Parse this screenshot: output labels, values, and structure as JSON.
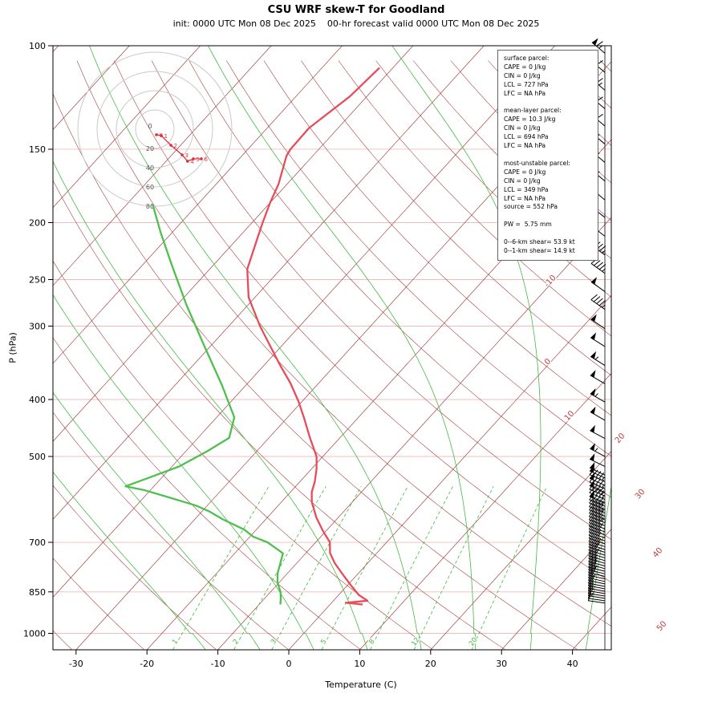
{
  "title": "CSU WRF skew-T for Goodland",
  "subtitle": "init: 0000 UTC Mon 08 Dec 2025    00-hr forecast valid 0000 UTC Mon 08 Dec 2025",
  "axes": {
    "x_label": "Temperature (C)",
    "y_label": "P (hPa)",
    "pressure_ticks": [
      100,
      150,
      200,
      250,
      300,
      400,
      500,
      700,
      850,
      1000
    ],
    "temp_ticks": [
      -30,
      -20,
      -10,
      0,
      10,
      20,
      30,
      40
    ]
  },
  "info_box": {
    "lines": [
      "surface parcel:",
      "CAPE = 0 J/kg",
      "CIN = 0 J/kg",
      "LCL = 727 hPa",
      "LFC = NA hPa",
      "",
      "mean-layer parcel:",
      "CAPE = 10.3 J/kg",
      "CIN = 0 J/kg",
      "LCL = 694 hPa",
      "LFC = NA hPa",
      "",
      "most-unstable parcel:",
      "CAPE = 0 J/kg",
      "CIN = 0 J/kg",
      "LCL = 349 hPa",
      "LFC = NA hPa",
      "source = 552 hPa",
      "",
      "PW =  5.75 mm",
      "",
      "0--6-km shear= 53.9 kt",
      "0--1-km shear= 14.9 kt"
    ]
  },
  "colors": {
    "temperature": "#e84b5a",
    "dewpoint": "#4fbf4f",
    "grid_warm": "#a23333",
    "grid_moist": "#44bb44",
    "grid_mixing": "#3dbb3d",
    "pressure_line": "#f2bcbc",
    "hodograph_trace": "#e03040",
    "isotherm_label": "#c43c3c",
    "barb": "#000000"
  },
  "chart_data": {
    "type": "line",
    "subtype": "skew-t-log-p",
    "temperature_profile": [
      [
        893,
        4.6
      ],
      [
        887,
        2.0
      ],
      [
        880,
        4.8
      ],
      [
        860,
        2.8
      ],
      [
        830,
        0.6
      ],
      [
        800,
        -1.6
      ],
      [
        760,
        -4.6
      ],
      [
        730,
        -6.6
      ],
      [
        700,
        -8.0
      ],
      [
        670,
        -10.4
      ],
      [
        635,
        -13.1
      ],
      [
        598,
        -15.7
      ],
      [
        575,
        -17.0
      ],
      [
        552,
        -17.9
      ],
      [
        525,
        -19.3
      ],
      [
        500,
        -20.9
      ],
      [
        465,
        -24.2
      ],
      [
        430,
        -27.6
      ],
      [
        403,
        -30.5
      ],
      [
        375,
        -34.0
      ],
      [
        350,
        -37.7
      ],
      [
        325,
        -41.5
      ],
      [
        300,
        -45.6
      ],
      [
        268,
        -50.9
      ],
      [
        240,
        -54.7
      ],
      [
        211,
        -57.4
      ],
      [
        200,
        -58.5
      ],
      [
        185,
        -60.0
      ],
      [
        172,
        -61.2
      ],
      [
        154,
        -63.7
      ],
      [
        150,
        -64.0
      ],
      [
        138,
        -64.1
      ],
      [
        122,
        -62.4
      ],
      [
        109,
        -61.9
      ]
    ],
    "dewpoint_profile": [
      [
        893,
        -7.0
      ],
      [
        870,
        -7.8
      ],
      [
        850,
        -8.6
      ],
      [
        820,
        -10.2
      ],
      [
        790,
        -11.4
      ],
      [
        760,
        -12.3
      ],
      [
        731,
        -13.2
      ],
      [
        715,
        -15.0
      ],
      [
        700,
        -16.8
      ],
      [
        685,
        -19.5
      ],
      [
        666,
        -21.7
      ],
      [
        640,
        -26.0
      ],
      [
        620,
        -29.0
      ],
      [
        606,
        -31.6
      ],
      [
        585,
        -37.0
      ],
      [
        570,
        -41.0
      ],
      [
        562,
        -44.0
      ],
      [
        545,
        -42.0
      ],
      [
        520,
        -39.0
      ],
      [
        490,
        -37.0
      ],
      [
        465,
        -35.6
      ],
      [
        429,
        -37.5
      ],
      [
        378,
        -43.4
      ],
      [
        323,
        -51.1
      ],
      [
        276,
        -58.7
      ],
      [
        236,
        -65.9
      ],
      [
        208,
        -71.6
      ],
      [
        186,
        -76.4
      ]
    ],
    "isotherm_labels": [
      -10,
      0,
      10,
      20,
      30,
      40,
      50
    ],
    "grid": {
      "mixing_ratio": [
        1,
        2,
        3,
        5,
        8,
        12,
        20
      ],
      "moist_adiabats": [
        -16,
        -8,
        0,
        8,
        16,
        24,
        32,
        40
      ],
      "dry_adiabats": {
        "from": -35,
        "to": 195,
        "step": 10
      }
    },
    "hodograph": {
      "rings_kt": [
        20,
        40,
        60,
        80
      ],
      "ring_labels": [
        "20",
        "40",
        "60",
        "80"
      ],
      "origin_label": "0",
      "trace": [
        {
          "km": "0",
          "u": 1.7,
          "v": -5.8
        },
        {
          "km": "1",
          "u": 6.7,
          "v": -6.7
        },
        {
          "km": "2",
          "u": 16.7,
          "v": -16.7
        },
        {
          "km": "3",
          "u": 28.3,
          "v": -26.7
        },
        {
          "km": "4",
          "u": 34.0,
          "v": -33.3
        },
        {
          "km": "5",
          "u": 40.0,
          "v": -30.8
        },
        {
          "km": "6",
          "u": 48.3,
          "v": -30.8
        }
      ]
    },
    "winds_p_speed_dir": [
      [
        103,
        65,
        310
      ],
      [
        111,
        60,
        310
      ],
      [
        119,
        65,
        310
      ],
      [
        128,
        60,
        310
      ],
      [
        137,
        60,
        310
      ],
      [
        147,
        55,
        310
      ],
      [
        158,
        55,
        310
      ],
      [
        170,
        55,
        310
      ],
      [
        183,
        50,
        310
      ],
      [
        196,
        50,
        308
      ],
      [
        211,
        50,
        308
      ],
      [
        227,
        45,
        306
      ],
      [
        244,
        45,
        306
      ],
      [
        262,
        50,
        305
      ],
      [
        281,
        45,
        305
      ],
      [
        303,
        50,
        304
      ],
      [
        325,
        50,
        302
      ],
      [
        350,
        55,
        302
      ],
      [
        376,
        50,
        300
      ],
      [
        404,
        55,
        300
      ],
      [
        434,
        50,
        300
      ],
      [
        466,
        50,
        298
      ],
      [
        500,
        55,
        298
      ],
      [
        520,
        50,
        296
      ],
      [
        538,
        50,
        296
      ],
      [
        544,
        50,
        295
      ],
      [
        552,
        45,
        295
      ],
      [
        560,
        50,
        295
      ],
      [
        568,
        45,
        295
      ],
      [
        576,
        50,
        294
      ],
      [
        584,
        45,
        294
      ],
      [
        592,
        45,
        294
      ],
      [
        600,
        50,
        293
      ],
      [
        608,
        45,
        293
      ],
      [
        616,
        40,
        293
      ],
      [
        624,
        45,
        292
      ],
      [
        632,
        40,
        292
      ],
      [
        640,
        40,
        292
      ],
      [
        648,
        45,
        291
      ],
      [
        656,
        40,
        291
      ],
      [
        664,
        35,
        291
      ],
      [
        672,
        40,
        290
      ],
      [
        680,
        35,
        290
      ],
      [
        688,
        35,
        290
      ],
      [
        696,
        30,
        289
      ],
      [
        704,
        35,
        289
      ],
      [
        712,
        30,
        288
      ],
      [
        720,
        30,
        288
      ],
      [
        728,
        30,
        288
      ],
      [
        736,
        25,
        287
      ],
      [
        744,
        30,
        287
      ],
      [
        752,
        25,
        286
      ],
      [
        760,
        25,
        286
      ],
      [
        768,
        25,
        285
      ],
      [
        776,
        20,
        285
      ],
      [
        784,
        25,
        284
      ],
      [
        792,
        20,
        284
      ],
      [
        800,
        20,
        283
      ],
      [
        808,
        20,
        283
      ],
      [
        816,
        15,
        282
      ],
      [
        824,
        20,
        282
      ],
      [
        832,
        15,
        281
      ],
      [
        840,
        15,
        281
      ],
      [
        848,
        15,
        280
      ],
      [
        856,
        15,
        280
      ],
      [
        864,
        10,
        279
      ],
      [
        872,
        15,
        279
      ],
      [
        880,
        10,
        278
      ],
      [
        888,
        10,
        278
      ]
    ]
  }
}
